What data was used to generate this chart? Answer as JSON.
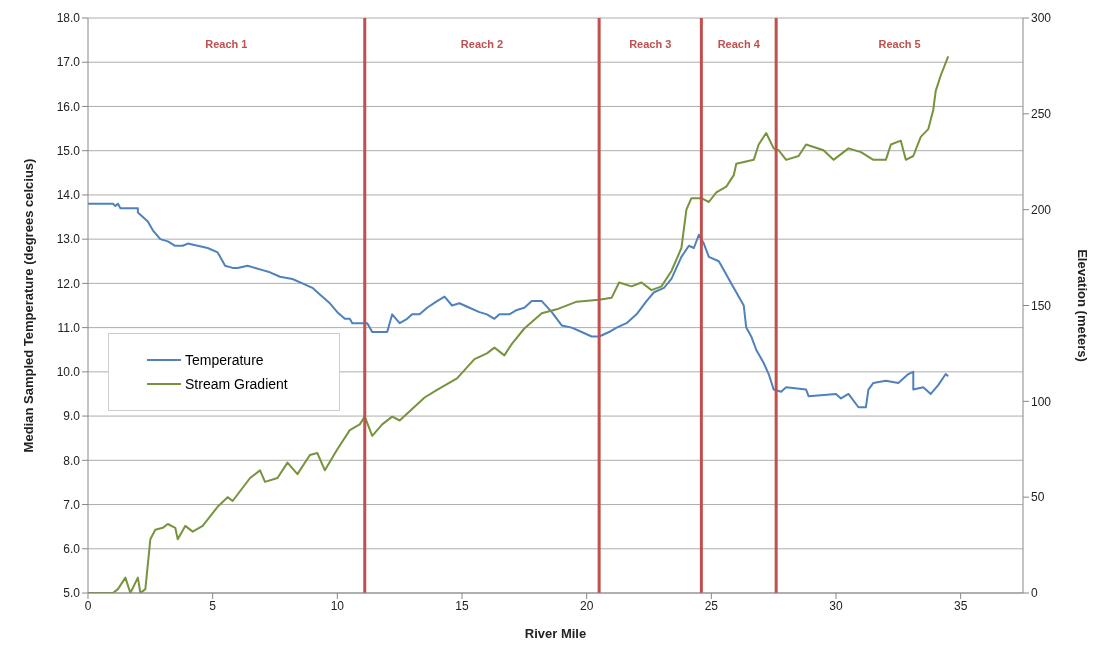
{
  "chart_data": {
    "type": "line",
    "xlabel": "River Mile",
    "ylabel": "Median Sampled Temperature (degrees celcius)",
    "y2label": "Elevation (meters)",
    "xlim": [
      0,
      37.5
    ],
    "xticks": [
      0,
      5,
      10,
      15,
      20,
      25,
      30,
      35
    ],
    "ylim": [
      5,
      18
    ],
    "yticks": [
      {
        "value": 5,
        "label": "5.0"
      },
      {
        "value": 6,
        "label": "6.0"
      },
      {
        "value": 7,
        "label": "7.0"
      },
      {
        "value": 8,
        "label": "8.0"
      },
      {
        "value": 9,
        "label": "9.0"
      },
      {
        "value": 10,
        "label": "10.0"
      },
      {
        "value": 11,
        "label": "11.0"
      },
      {
        "value": 12,
        "label": "12.0"
      },
      {
        "value": 13,
        "label": "13.0"
      },
      {
        "value": 14,
        "label": "14.0"
      },
      {
        "value": 15,
        "label": "15.0"
      },
      {
        "value": 16,
        "label": "16.0"
      },
      {
        "value": 17,
        "label": "17.0"
      },
      {
        "value": 18,
        "label": "18.0"
      }
    ],
    "y2lim": [
      0,
      300
    ],
    "y2ticks": [
      0,
      50,
      100,
      150,
      200,
      250,
      300
    ],
    "grid": "y",
    "legend": "left",
    "marker": "none",
    "line_style": "solid",
    "series": [
      {
        "name": "Temperature",
        "color": "#4f81bd",
        "x": [
          0,
          1.0,
          1.1,
          1.2,
          1.3,
          2.0,
          2.0,
          2.2,
          2.4,
          2.6,
          2.9,
          3.2,
          3.5,
          3.8,
          4.0,
          4.4,
          4.8,
          5.2,
          5.5,
          5.8,
          6.0,
          6.4,
          7.0,
          7.3,
          7.7,
          8.2,
          8.6,
          9.0,
          9.3,
          9.7,
          10.0,
          10.3,
          10.5,
          10.6,
          11.2,
          11.4,
          12.0,
          12.2,
          12.5,
          12.8,
          13.0,
          13.3,
          13.6,
          14.0,
          14.3,
          14.6,
          14.9,
          15.3,
          15.7,
          16.0,
          16.3,
          16.5,
          16.9,
          17.2,
          17.5,
          17.8,
          18.2,
          18.6,
          19.0,
          19.4,
          19.8,
          20.2,
          20.5,
          20.9,
          21.2,
          21.6,
          22.0,
          22.4,
          22.7,
          23.1,
          23.4,
          23.8,
          24.1,
          24.3,
          24.5,
          24.7,
          24.9,
          25.3,
          25.5,
          25.8,
          26.0,
          26.3,
          26.4,
          26.6,
          26.8,
          27.1,
          27.3,
          27.5,
          27.8,
          28.0,
          28.8,
          28.9,
          30.0,
          30.2,
          30.5,
          30.9,
          31.2,
          31.3,
          31.5,
          32.0,
          32.5,
          32.9,
          33.1,
          33.1,
          33.5,
          33.8,
          34.1,
          34.4,
          34.5
        ],
        "values": [
          13.8,
          13.8,
          13.75,
          13.8,
          13.7,
          13.7,
          13.6,
          13.5,
          13.4,
          13.2,
          13.0,
          12.95,
          12.85,
          12.85,
          12.9,
          12.85,
          12.8,
          12.7,
          12.4,
          12.35,
          12.35,
          12.4,
          12.3,
          12.25,
          12.15,
          12.1,
          12.0,
          11.9,
          11.75,
          11.55,
          11.35,
          11.2,
          11.2,
          11.1,
          11.1,
          10.9,
          10.9,
          11.3,
          11.1,
          11.2,
          11.3,
          11.3,
          11.45,
          11.6,
          11.7,
          11.5,
          11.55,
          11.45,
          11.35,
          11.3,
          11.2,
          11.3,
          11.3,
          11.4,
          11.45,
          11.6,
          11.6,
          11.35,
          11.05,
          11.0,
          10.9,
          10.8,
          10.8,
          10.9,
          11.0,
          11.1,
          11.3,
          11.6,
          11.8,
          11.9,
          12.1,
          12.6,
          12.85,
          12.8,
          13.1,
          12.9,
          12.6,
          12.5,
          12.3,
          12.0,
          11.8,
          11.5,
          11.0,
          10.8,
          10.5,
          10.2,
          9.95,
          9.6,
          9.55,
          9.65,
          9.6,
          9.45,
          9.5,
          9.4,
          9.5,
          9.2,
          9.2,
          9.6,
          9.75,
          9.8,
          9.75,
          9.95,
          10.0,
          9.6,
          9.65,
          9.5,
          9.7,
          9.95,
          9.9
        ]
      },
      {
        "name": "Stream Gradient",
        "color": "#77933c",
        "axis": "y2",
        "x": [
          0,
          1.0,
          1.2,
          1.5,
          1.7,
          2.0,
          2.1,
          2.3,
          2.5,
          2.7,
          3.0,
          3.2,
          3.5,
          3.6,
          3.9,
          4.2,
          4.6,
          5.2,
          5.6,
          5.8,
          6.5,
          6.9,
          7.1,
          7.6,
          8.0,
          8.4,
          8.9,
          9.2,
          9.5,
          10.0,
          10.5,
          10.9,
          11.1,
          11.4,
          11.8,
          12.2,
          12.5,
          13.0,
          13.5,
          14.0,
          14.8,
          15.5,
          16.0,
          16.3,
          16.7,
          17.0,
          17.5,
          18.2,
          18.8,
          19.6,
          20.5,
          21.0,
          21.3,
          21.8,
          22.2,
          22.6,
          23.0,
          23.4,
          23.8,
          24.0,
          24.2,
          24.6,
          24.9,
          25.2,
          25.6,
          25.9,
          26.0,
          26.7,
          26.9,
          27.2,
          27.5,
          27.7,
          28.0,
          28.5,
          28.8,
          29.5,
          29.9,
          30.5,
          31.0,
          31.5,
          32.0,
          32.2,
          32.6,
          32.8,
          33.1,
          33.4,
          33.7,
          33.9,
          34.0,
          34.2,
          34.5
        ],
        "values": [
          0,
          0,
          2,
          8,
          0,
          8,
          0,
          2,
          28,
          33,
          34,
          36,
          34,
          28,
          35,
          32,
          35,
          45,
          50,
          48,
          60,
          64,
          58,
          60,
          68,
          62,
          72,
          73,
          64,
          75,
          85,
          88,
          92,
          82,
          88,
          92,
          90,
          96,
          102,
          106,
          112,
          122,
          125,
          128,
          124,
          130,
          138,
          146,
          148,
          152,
          153,
          154,
          162,
          160,
          162,
          158,
          160,
          168,
          180,
          200,
          206,
          206,
          204,
          209,
          212,
          218,
          224,
          226,
          234,
          240,
          232,
          231,
          226,
          228,
          234,
          231,
          226,
          232,
          230,
          226,
          226,
          234,
          236,
          226,
          228,
          238,
          242,
          252,
          262,
          270,
          280
        ]
      }
    ],
    "ref_lines": [
      {
        "axis": "x",
        "value": 11.1,
        "color": "#c0504d"
      },
      {
        "axis": "x",
        "value": 20.5,
        "color": "#c0504d"
      },
      {
        "axis": "x",
        "value": 24.6,
        "color": "#c0504d"
      },
      {
        "axis": "x",
        "value": 27.6,
        "color": "#c0504d"
      }
    ],
    "annotations": [
      "Reach 1",
      "Reach 2",
      "Reach 3",
      "Reach 4",
      "Reach 5"
    ]
  }
}
